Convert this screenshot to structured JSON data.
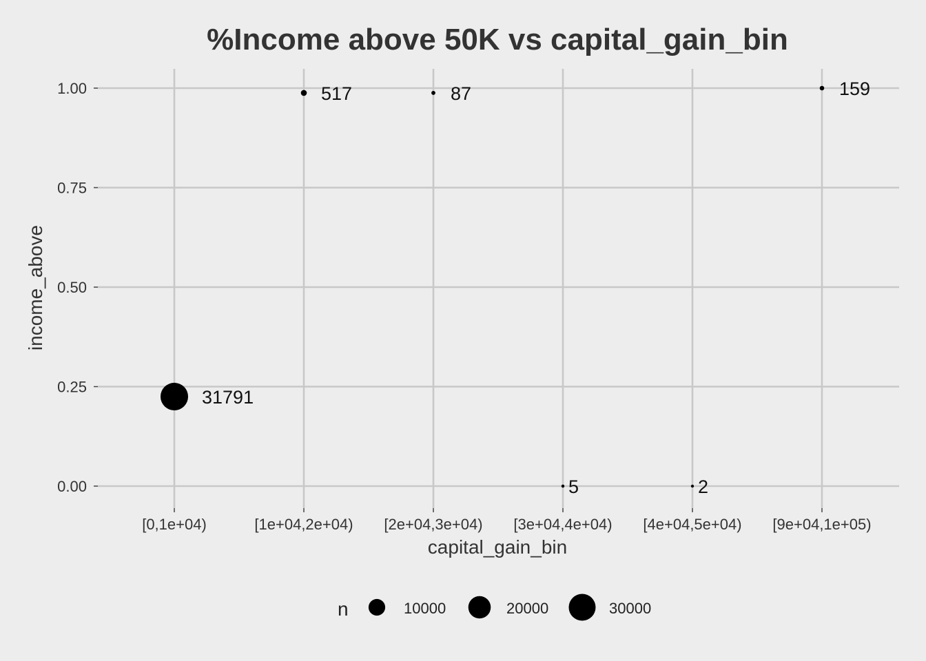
{
  "chart_data": {
    "type": "scatter",
    "title": "%Income above 50K vs capital_gain_bin",
    "xlabel": "capital_gain_bin",
    "ylabel": "income_above",
    "categories": [
      "[0,1e+04)",
      "[1e+04,2e+04)",
      "[2e+04,3e+04)",
      "[3e+04,4e+04)",
      "[4e+04,5e+04)",
      "[9e+04,1e+05)"
    ],
    "ylim": [
      0,
      1
    ],
    "y_ticks": [
      "0.00",
      "0.25",
      "0.50",
      "0.75",
      "1.00"
    ],
    "y_tick_values": [
      0,
      0.25,
      0.5,
      0.75,
      1.0
    ],
    "points": [
      {
        "x": "[0,1e+04)",
        "y": 0.225,
        "n": 31791,
        "label": "31791"
      },
      {
        "x": "[1e+04,2e+04)",
        "y": 0.988,
        "n": 517,
        "label": "517"
      },
      {
        "x": "[2e+04,3e+04)",
        "y": 0.988,
        "n": 87,
        "label": "87"
      },
      {
        "x": "[3e+04,4e+04)",
        "y": 0.0,
        "n": 5,
        "label": "5"
      },
      {
        "x": "[4e+04,5e+04)",
        "y": 0.0,
        "n": 2,
        "label": "2"
      },
      {
        "x": "[9e+04,1e+05)",
        "y": 1.0,
        "n": 159,
        "label": "159"
      }
    ],
    "grid": true,
    "point_color": "#000000",
    "background": "#ededed",
    "grid_color": "#c8c8c8",
    "legend": {
      "title": "n",
      "placement": "bottom",
      "entries": [
        {
          "value": 10000,
          "label": "10000"
        },
        {
          "value": 20000,
          "label": "20000"
        },
        {
          "value": 30000,
          "label": "30000"
        }
      ]
    }
  }
}
